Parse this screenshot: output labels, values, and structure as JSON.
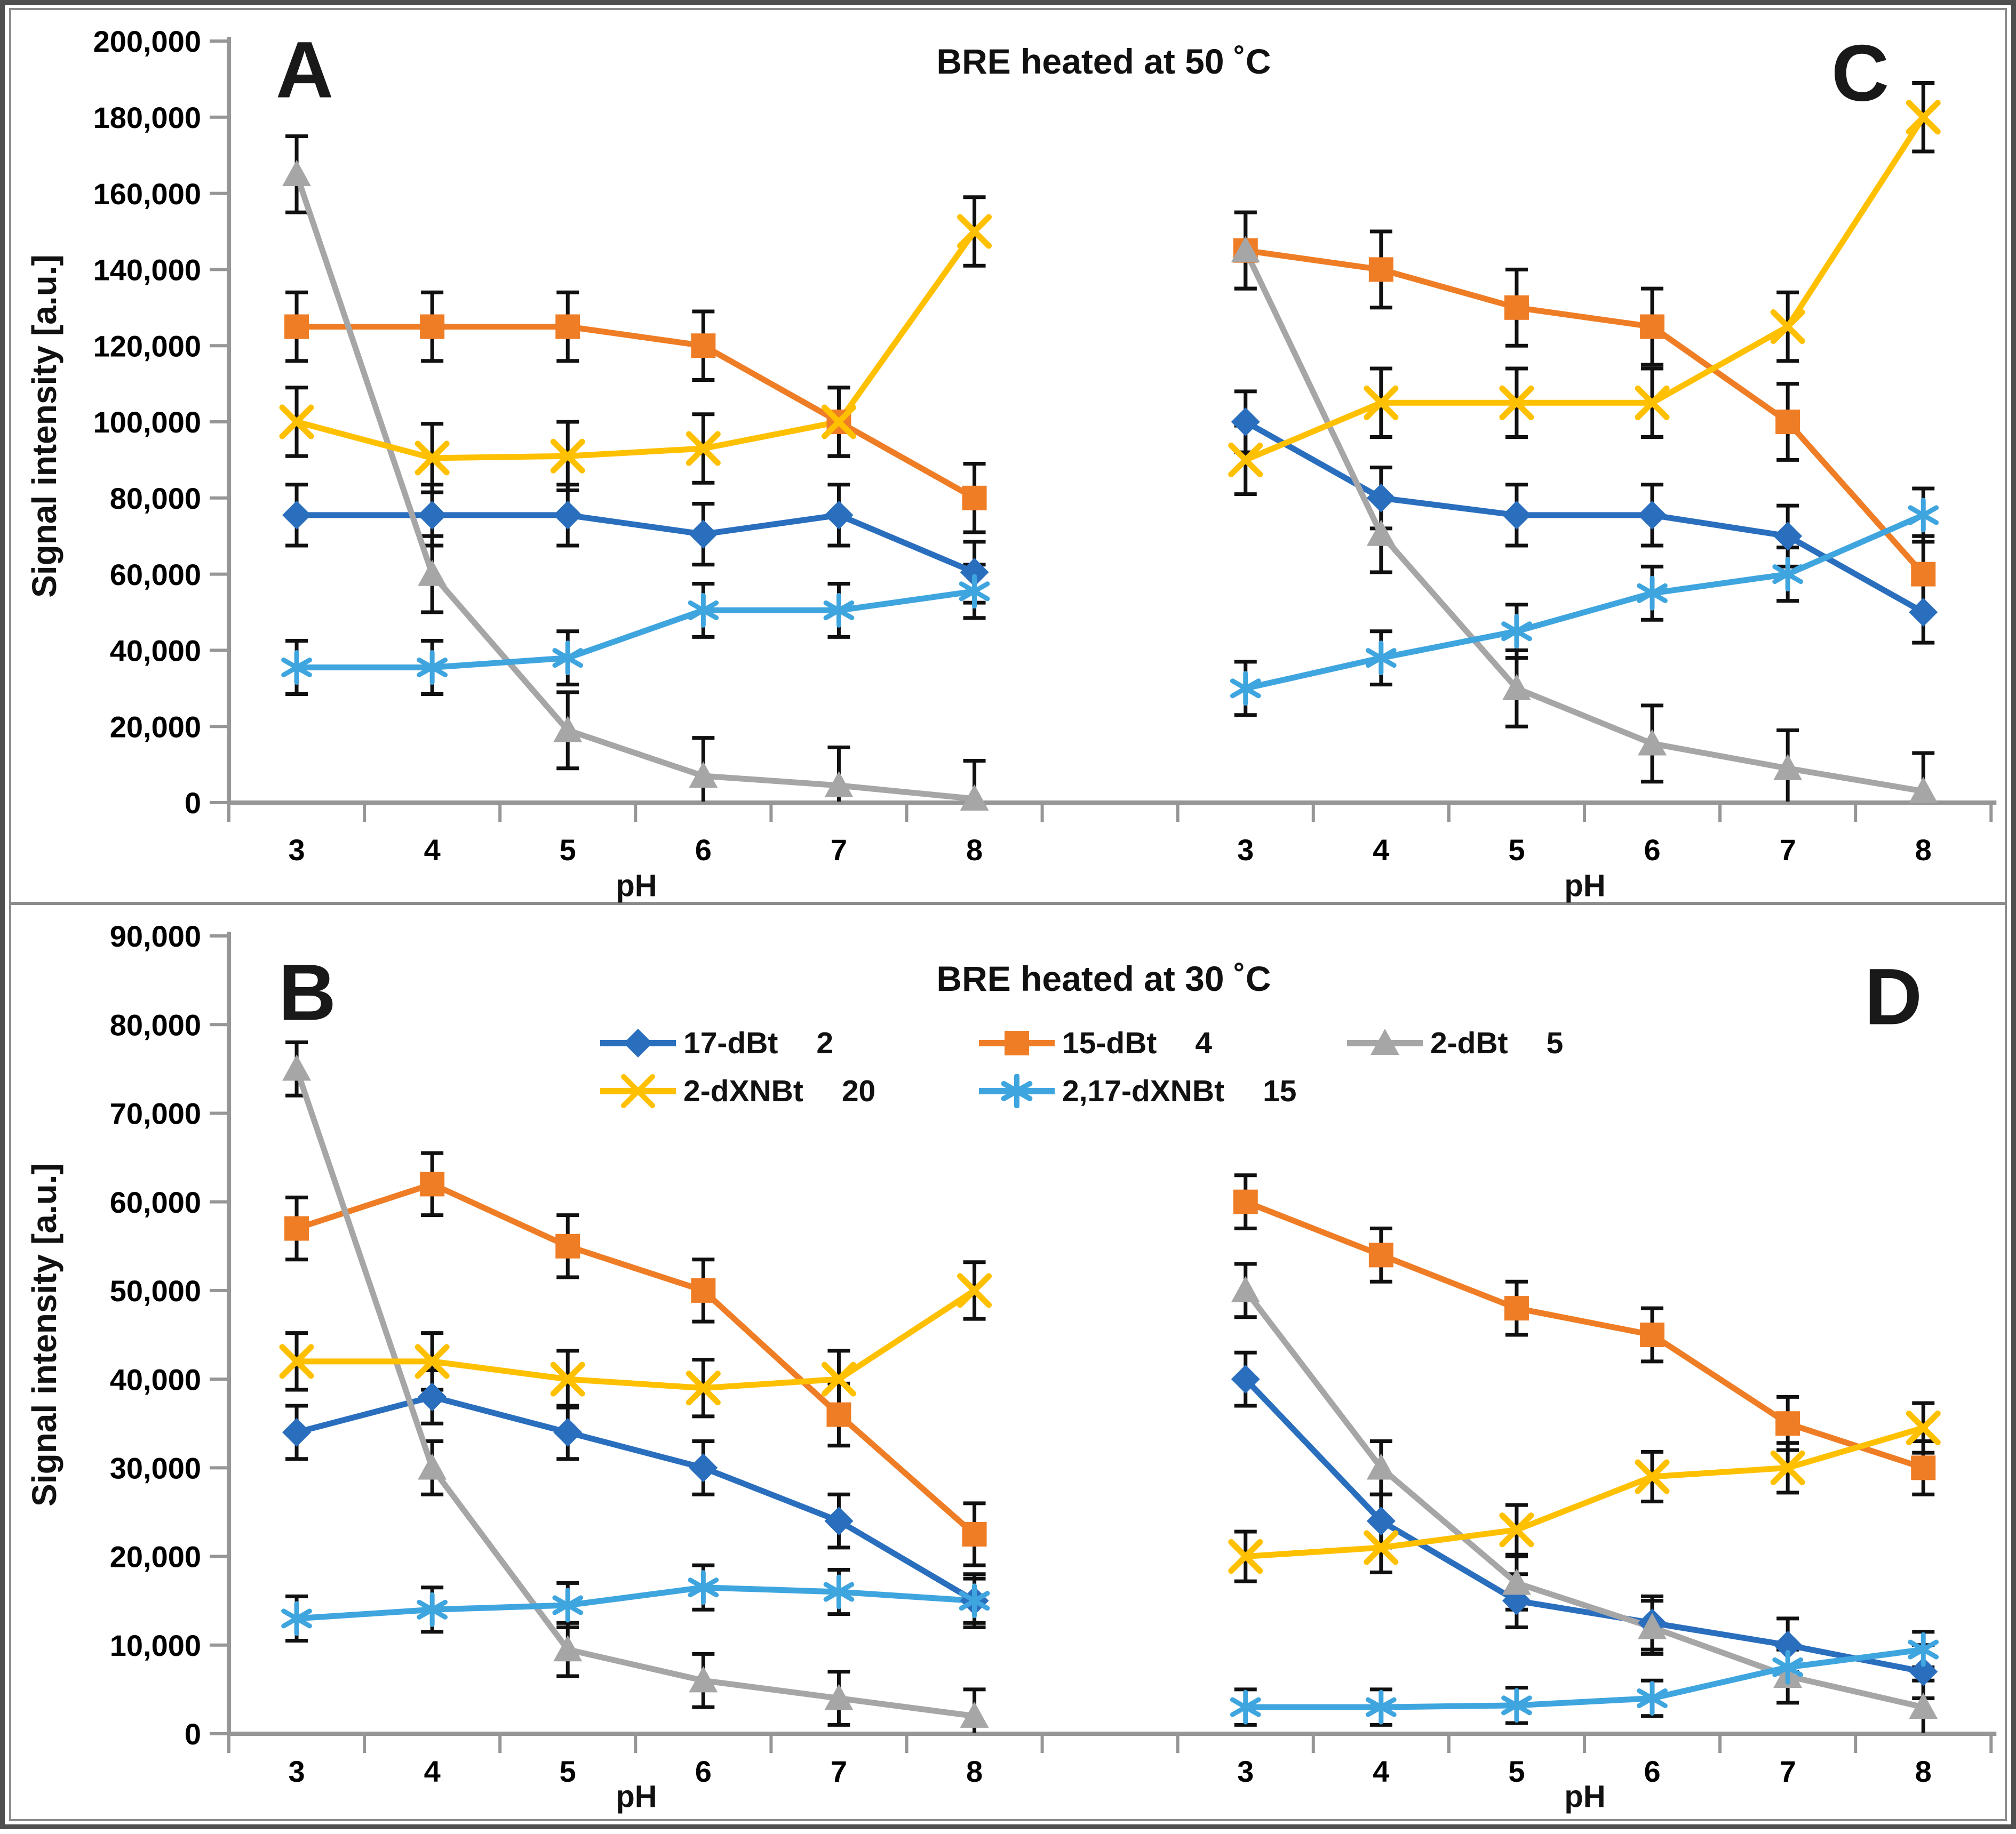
{
  "figure": {
    "y_axis_label": "Signal intensity [a.u.]",
    "x_axis_label": "pH",
    "categories": [
      "3",
      "4",
      "5",
      "6",
      "7",
      "8"
    ]
  },
  "legend": {
    "items": [
      {
        "label": "17-dBt",
        "value": "2",
        "marker": "diamond",
        "color": "#2A6EBE"
      },
      {
        "label": "15-dBt",
        "value": "4",
        "marker": "square",
        "color": "#EF7D26"
      },
      {
        "label": "2-dBt",
        "value": "5",
        "marker": "triangle",
        "color": "#A6A6A6"
      },
      {
        "label": "2-dXNBt",
        "value": "20",
        "marker": "x",
        "color": "#FFC000"
      },
      {
        "label": "2,17-dXNBt",
        "value": "15",
        "marker": "asterisk",
        "color": "#3FA5DF"
      }
    ]
  },
  "chart_data": [
    {
      "type": "line",
      "title": "BRE heated at 50 ˚C",
      "xlabel": "pH",
      "ylabel": "Signal intensity [a.u.]",
      "ylim": [
        0,
        200000
      ],
      "y_tick_step": 20000,
      "y_tick_labels": [
        "200,000",
        "180,000",
        "160,000",
        "140,000",
        "120,000",
        "100,000",
        "80,000",
        "60,000",
        "40,000",
        "20,000",
        "0"
      ],
      "x": [
        3,
        4,
        5,
        6,
        7,
        8
      ],
      "grid": false,
      "panels": [
        {
          "letter": "A",
          "series": [
            {
              "name": "17-dBt",
              "values": [
                75500,
                75500,
                75500,
                70500,
                75500,
                60500
              ],
              "error": 8000
            },
            {
              "name": "15-dBt",
              "values": [
                125000,
                125000,
                125000,
                120000,
                100000,
                80000
              ],
              "error": 9000
            },
            {
              "name": "2-dBt",
              "values": [
                165000,
                60000,
                19000,
                7000,
                4500,
                1000
              ],
              "error": 10000
            },
            {
              "name": "2-dXNBt",
              "values": [
                100000,
                90500,
                91000,
                93000,
                100000,
                150000
              ],
              "error": 9000
            },
            {
              "name": "2,17-dXNBt",
              "values": [
                35500,
                35500,
                38000,
                50500,
                50500,
                55500
              ],
              "error": 7000
            }
          ]
        },
        {
          "letter": "C",
          "series": [
            {
              "name": "17-dBt",
              "values": [
                100000,
                80000,
                75500,
                75500,
                70000,
                50000
              ],
              "error": 8000
            },
            {
              "name": "15-dBt",
              "values": [
                145000,
                140000,
                130000,
                125000,
                100000,
                60000
              ],
              "error": 10000
            },
            {
              "name": "2-dBt",
              "values": [
                145000,
                70500,
                30000,
                15500,
                9000,
                3000
              ],
              "error": 10000
            },
            {
              "name": "2-dXNBt",
              "values": [
                90000,
                105000,
                105000,
                105000,
                125000,
                180000
              ],
              "error": 9000
            },
            {
              "name": "2,17-dXNBt",
              "values": [
                30000,
                38000,
                45000,
                55000,
                60000,
                75500
              ],
              "error": 7000
            }
          ]
        }
      ]
    },
    {
      "type": "line",
      "title": "BRE heated at 30 ˚C",
      "xlabel": "pH",
      "ylabel": "Signal intensity [a.u.]",
      "ylim": [
        0,
        90000
      ],
      "y_tick_step": 10000,
      "y_tick_labels": [
        "90,000",
        "80,000",
        "70,000",
        "60,000",
        "50,000",
        "40,000",
        "30,000",
        "20,000",
        "10,000",
        "0"
      ],
      "x": [
        3,
        4,
        5,
        6,
        7,
        8
      ],
      "grid": false,
      "panels": [
        {
          "letter": "B",
          "series": [
            {
              "name": "17-dBt",
              "values": [
                34000,
                38000,
                34000,
                30000,
                24000,
                15000
              ],
              "error": 3000
            },
            {
              "name": "15-dBt",
              "values": [
                57000,
                62000,
                55000,
                50000,
                36000,
                22500
              ],
              "error": 3500
            },
            {
              "name": "2-dBt",
              "values": [
                75000,
                30000,
                9500,
                6000,
                4000,
                2000
              ],
              "error": 3000
            },
            {
              "name": "2-dXNBt",
              "values": [
                42000,
                42000,
                40000,
                39000,
                40000,
                50000
              ],
              "error": 3200
            },
            {
              "name": "2,17-dXNBt",
              "values": [
                13000,
                14000,
                14500,
                16500,
                16000,
                15000
              ],
              "error": 2500
            }
          ]
        },
        {
          "letter": "D",
          "series": [
            {
              "name": "17-dBt",
              "values": [
                40000,
                24000,
                15000,
                12500,
                10000,
                7000
              ],
              "error": 3000
            },
            {
              "name": "15-dBt",
              "values": [
                60000,
                54000,
                48000,
                45000,
                35000,
                30000
              ],
              "error": 3000
            },
            {
              "name": "2-dBt",
              "values": [
                50000,
                30000,
                17000,
                12000,
                6500,
                3000
              ],
              "error": 3000
            },
            {
              "name": "2-dXNBt",
              "values": [
                20000,
                21000,
                23000,
                29000,
                30000,
                34500
              ],
              "error": 2800
            },
            {
              "name": "2,17-dXNBt",
              "values": [
                3000,
                3000,
                3200,
                4000,
                7500,
                9500
              ],
              "error": 2000
            }
          ]
        }
      ]
    }
  ]
}
